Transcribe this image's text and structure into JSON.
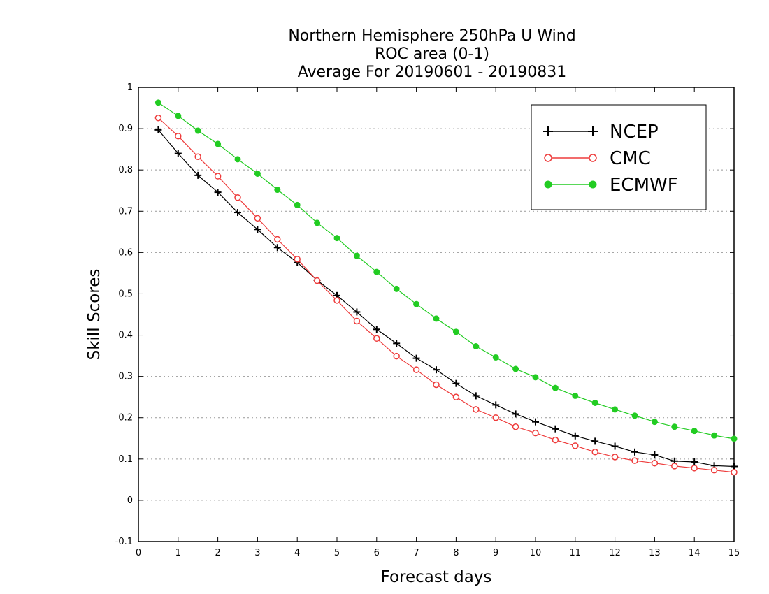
{
  "chart_data": {
    "type": "line",
    "title_lines": [
      "Northern Hemisphere 250hPa U Wind",
      "ROC area (0-1)",
      "Average For 20190601 - 20190831"
    ],
    "xlabel": "Forecast days",
    "ylabel": "Skill Scores",
    "xlim": [
      0,
      15
    ],
    "ylim": [
      -0.1,
      1
    ],
    "x_ticks": [
      "0",
      "1",
      "2",
      "3",
      "4",
      "5",
      "6",
      "7",
      "8",
      "9",
      "10",
      "11",
      "12",
      "13",
      "14",
      "15"
    ],
    "y_ticks": [
      "-0.1",
      "0",
      "0.1",
      "0.2",
      "0.3",
      "0.4",
      "0.5",
      "0.6",
      "0.7",
      "0.8",
      "0.9",
      "1"
    ],
    "grid": "horizontal dotted",
    "legend_position": "top-right",
    "x": [
      0.5,
      1,
      1.5,
      2,
      2.5,
      3,
      3.5,
      4,
      4.5,
      5,
      5.5,
      6,
      6.5,
      7,
      7.5,
      8,
      8.5,
      9,
      9.5,
      10,
      10.5,
      11,
      11.5,
      12,
      12.5,
      13,
      13.5,
      14,
      14.5,
      15
    ],
    "series": [
      {
        "name": "NCEP",
        "color": "#000000",
        "marker": "plus",
        "values": [
          0.897,
          0.84,
          0.787,
          0.746,
          0.697,
          0.656,
          0.612,
          0.576,
          0.533,
          0.496,
          0.456,
          0.414,
          0.38,
          0.344,
          0.316,
          0.283,
          0.253,
          0.231,
          0.209,
          0.19,
          0.173,
          0.156,
          0.143,
          0.131,
          0.117,
          0.11,
          0.095,
          0.093,
          0.084,
          0.082
        ]
      },
      {
        "name": "CMC",
        "color": "#ee3b3b",
        "marker": "open-circle",
        "values": [
          0.926,
          0.882,
          0.832,
          0.785,
          0.733,
          0.683,
          0.632,
          0.584,
          0.532,
          0.484,
          0.434,
          0.392,
          0.349,
          0.316,
          0.28,
          0.25,
          0.22,
          0.2,
          0.178,
          0.163,
          0.146,
          0.132,
          0.117,
          0.105,
          0.096,
          0.09,
          0.083,
          0.078,
          0.073,
          0.068
        ]
      },
      {
        "name": "ECMWF",
        "color": "#22cc22",
        "marker": "filled-circle",
        "values": [
          0.963,
          0.931,
          0.895,
          0.863,
          0.826,
          0.791,
          0.752,
          0.715,
          0.672,
          0.635,
          0.592,
          0.553,
          0.512,
          0.475,
          0.44,
          0.408,
          0.373,
          0.346,
          0.318,
          0.298,
          0.272,
          0.253,
          0.236,
          0.22,
          0.205,
          0.19,
          0.178,
          0.168,
          0.157,
          0.149
        ]
      }
    ]
  }
}
